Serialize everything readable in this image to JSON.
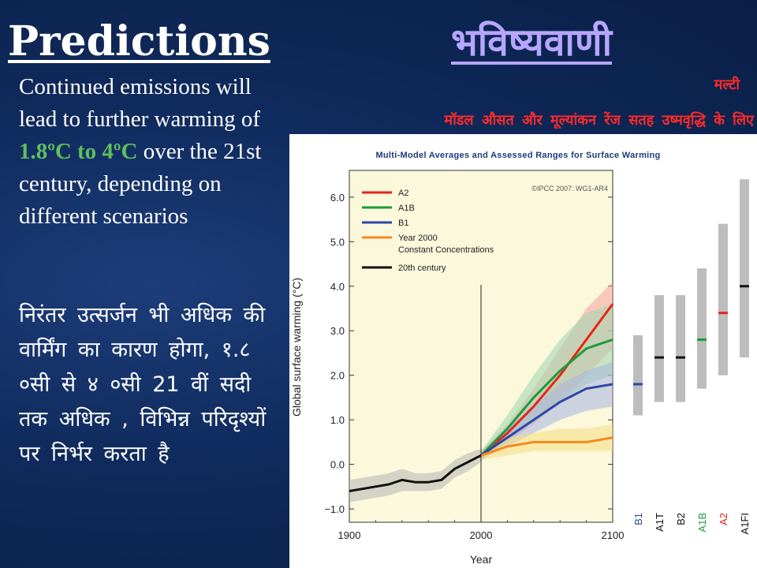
{
  "slide": {
    "title_en": "Predictions",
    "title_hi": "भविष्यवाणी",
    "caption_hi_line1": "मल्टी",
    "caption_hi_line2": "मॉडल औसत और मूल्यांकन रेंज सतह उष्मवृद्धि  के लिए",
    "body_en_1": "Continued emissions will lead to further warming of",
    "body_en_highlight": "1.8ºC to 4ºC",
    "body_en_2": "over the 21st century, depending on different scenarios",
    "body_hi": "निरंतर उत्सर्जन भी अधिक की वार्मिंग का कारण होगा, १.८ ०सी से ४ ०सी 21 वीं सदी तक अधिक , विभिन्न परिदृश्यों पर निर्भर करता है",
    "highlight_color": "#5fbf5f"
  },
  "chart_data": {
    "type": "line",
    "title": "Multi-Model Averages and Assessed Ranges for Surface Warming",
    "credit": "©IPCC 2007: WG1-AR4",
    "xlabel": "Year",
    "ylabel": "Global surface warming (°C)",
    "xlim": [
      1900,
      2100
    ],
    "ylim": [
      -1.3,
      6.6
    ],
    "xticks": [
      1900,
      2000,
      2100
    ],
    "yticks": [
      -1.0,
      0.0,
      1.0,
      2.0,
      3.0,
      4.0,
      5.0,
      6.0
    ],
    "ytick_labels": [
      "−1.0",
      "0.0",
      "1.0",
      "2.0",
      "3.0",
      "4.0",
      "5.0",
      "6.0"
    ],
    "xtick_labels": [
      "1900",
      "2000",
      "2100"
    ],
    "vline_x": 2000,
    "legend": "top-left",
    "series": [
      {
        "name": "A2",
        "color": "#e8241c",
        "band": "#f4a3a0",
        "x": [
          2000,
          2020,
          2040,
          2060,
          2080,
          2100
        ],
        "y": [
          0.2,
          0.7,
          1.3,
          2.0,
          2.8,
          3.6
        ],
        "lo": [
          0.1,
          0.5,
          0.9,
          1.4,
          2.0,
          2.6
        ],
        "hi": [
          0.3,
          0.9,
          1.7,
          2.6,
          3.5,
          4.1
        ]
      },
      {
        "name": "A1B",
        "color": "#1d9b3c",
        "band": "#9fd6ae",
        "x": [
          2000,
          2020,
          2040,
          2060,
          2080,
          2100
        ],
        "y": [
          0.2,
          0.8,
          1.5,
          2.1,
          2.6,
          2.8
        ],
        "lo": [
          0.1,
          0.5,
          1.0,
          1.4,
          1.8,
          2.0
        ],
        "hi": [
          0.3,
          1.1,
          2.0,
          2.8,
          3.4,
          3.6
        ]
      },
      {
        "name": "B1",
        "color": "#2d47a8",
        "band": "#a8b4e0",
        "x": [
          2000,
          2020,
          2040,
          2060,
          2080,
          2100
        ],
        "y": [
          0.2,
          0.6,
          1.0,
          1.4,
          1.7,
          1.8
        ],
        "lo": [
          0.1,
          0.4,
          0.7,
          1.0,
          1.2,
          1.3
        ],
        "hi": [
          0.3,
          0.8,
          1.3,
          1.8,
          2.1,
          2.3
        ]
      },
      {
        "name": "Year 2000 Constant Concentrations",
        "color": "#f5891f",
        "band": "#f8dc80",
        "x": [
          2000,
          2020,
          2040,
          2060,
          2080,
          2100
        ],
        "y": [
          0.2,
          0.4,
          0.5,
          0.5,
          0.5,
          0.6
        ],
        "lo": [
          0.1,
          0.2,
          0.3,
          0.3,
          0.3,
          0.3
        ],
        "hi": [
          0.3,
          0.6,
          0.7,
          0.8,
          0.8,
          0.9
        ]
      },
      {
        "name": "20th century",
        "color": "#111111",
        "band": "#b4b4b4",
        "x": [
          1900,
          1910,
          1920,
          1930,
          1940,
          1950,
          1960,
          1970,
          1980,
          1990,
          2000
        ],
        "y": [
          -0.6,
          -0.55,
          -0.5,
          -0.45,
          -0.35,
          -0.4,
          -0.4,
          -0.35,
          -0.1,
          0.05,
          0.2
        ],
        "lo": [
          -0.85,
          -0.8,
          -0.75,
          -0.7,
          -0.6,
          -0.6,
          -0.6,
          -0.55,
          -0.3,
          -0.15,
          0.05
        ],
        "hi": [
          -0.35,
          -0.3,
          -0.25,
          -0.2,
          -0.1,
          -0.2,
          -0.2,
          -0.15,
          0.1,
          0.25,
          0.35
        ]
      }
    ],
    "ranges": [
      {
        "label": "B1",
        "low": 1.1,
        "high": 2.9,
        "best": 1.8,
        "color": "#2d47a8"
      },
      {
        "label": "A1T",
        "low": 1.4,
        "high": 3.8,
        "best": 2.4,
        "color": "#111111"
      },
      {
        "label": "B2",
        "low": 1.4,
        "high": 3.8,
        "best": 2.4,
        "color": "#111111"
      },
      {
        "label": "A1B",
        "low": 1.7,
        "high": 4.4,
        "best": 2.8,
        "color": "#1d9b3c"
      },
      {
        "label": "A2",
        "low": 2.0,
        "high": 5.4,
        "best": 3.4,
        "color": "#e8241c"
      },
      {
        "label": "A1FI",
        "low": 2.4,
        "high": 6.4,
        "best": 4.0,
        "color": "#111111"
      }
    ],
    "range_bar_color": "#bdbdbd",
    "legend_bg": "#fbf8dc"
  }
}
